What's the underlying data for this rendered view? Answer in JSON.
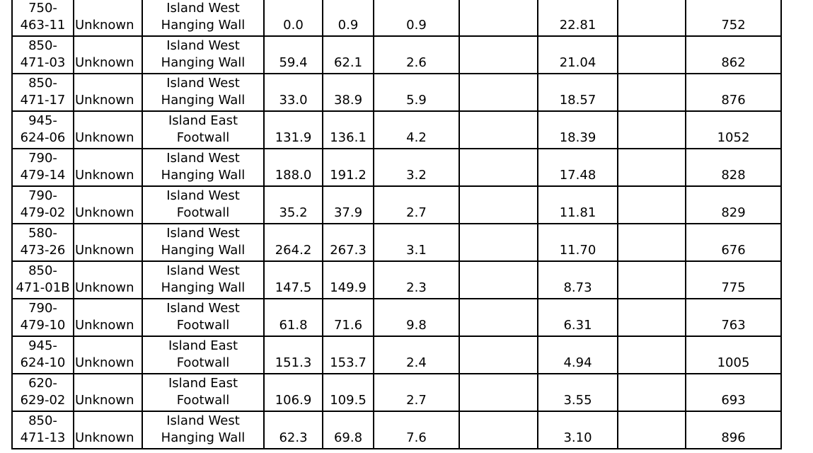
{
  "table": {
    "rows": [
      [
        "750-\n463-11",
        "Unknown",
        "Island West\nHanging Wall",
        "0.0",
        "0.9",
        "0.9",
        "22.81",
        "752"
      ],
      [
        "850-\n471-03",
        "Unknown",
        "Island West\nHanging Wall",
        "59.4",
        "62.1",
        "2.6",
        "21.04",
        "862"
      ],
      [
        "850-\n471-17",
        "Unknown",
        "Island West\nHanging Wall",
        "33.0",
        "38.9",
        "5.9",
        "18.57",
        "876"
      ],
      [
        "945-\n624-06",
        "Unknown",
        "Island East\nFootwall",
        "131.9",
        "136.1",
        "4.2",
        "18.39",
        "1052"
      ],
      [
        "790-\n479-14",
        "Unknown",
        "Island West\nHanging Wall",
        "188.0",
        "191.2",
        "3.2",
        "17.48",
        "828"
      ],
      [
        "790-\n479-02",
        "Unknown",
        "Island West\nFootwall",
        "35.2",
        "37.9",
        "2.7",
        "11.81",
        "829"
      ],
      [
        "580-\n473-26",
        "Unknown",
        "Island West\nHanging Wall",
        "264.2",
        "267.3",
        "3.1",
        "11.70",
        "676"
      ],
      [
        "850-\n471-01B",
        "Unknown",
        "Island West\nHanging Wall",
        "147.5",
        "149.9",
        "2.3",
        "8.73",
        "775"
      ],
      [
        "790-\n479-10",
        "Unknown",
        "Island West\nFootwall",
        "61.8",
        "71.6",
        "9.8",
        "6.31",
        "763"
      ],
      [
        "945-\n624-10",
        "Unknown",
        "Island East\nFootwall",
        "151.3",
        "153.7",
        "2.4",
        "4.94",
        "1005"
      ],
      [
        "620-\n629-02",
        "Unknown",
        "Island East\nFootwall",
        "106.9",
        "109.5",
        "2.7",
        "3.55",
        "693"
      ],
      [
        "850-\n471-13",
        "Unknown",
        "Island West\nHanging Wall",
        "62.3",
        "69.8",
        "7.6",
        "3.10",
        "896"
      ]
    ]
  }
}
